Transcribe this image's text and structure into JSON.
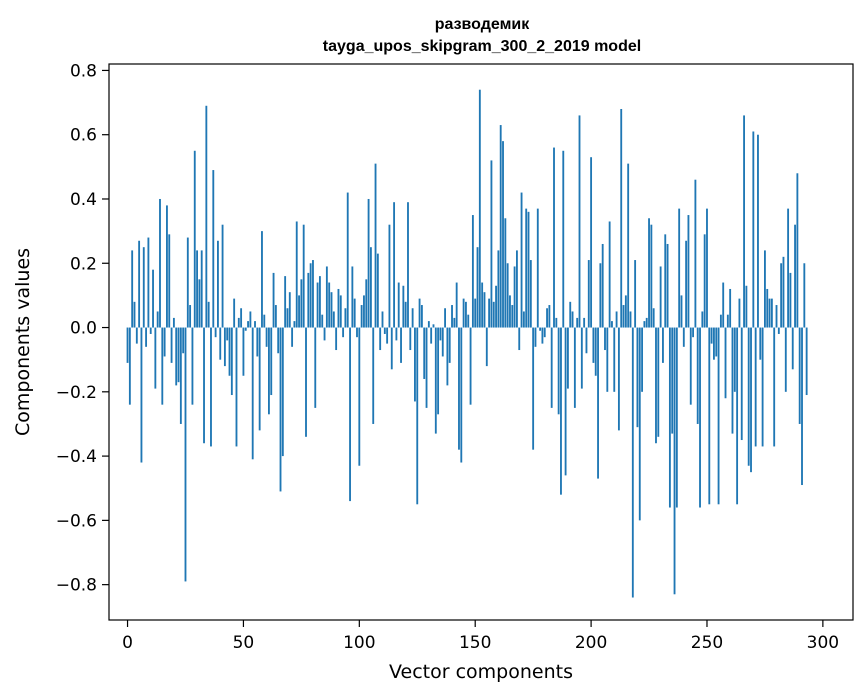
{
  "chart_data": {
    "type": "bar",
    "title": "разводемик",
    "subtitle": "tayga_upos_skipgram_300_2_2019 model",
    "xlabel": "Vector components",
    "ylabel": "Components values",
    "xlim": [
      -8,
      313
    ],
    "ylim": [
      -0.91,
      0.82
    ],
    "xticks": [
      0,
      50,
      100,
      150,
      200,
      250,
      300
    ],
    "xtick_labels": [
      "0",
      "50",
      "100",
      "150",
      "200",
      "250",
      "300"
    ],
    "yticks": [
      -0.8,
      -0.6,
      -0.4,
      -0.2,
      0.0,
      0.2,
      0.4,
      0.6,
      0.8
    ],
    "ytick_labels": [
      "−0.8",
      "−0.6",
      "−0.4",
      "−0.2",
      "0.0",
      "0.2",
      "0.4",
      "0.6",
      "0.8"
    ],
    "grid": false,
    "bar_color": "#1f77b4",
    "values": [
      -0.11,
      -0.24,
      0.24,
      0.08,
      -0.05,
      0.27,
      -0.42,
      0.25,
      -0.06,
      0.28,
      -0.02,
      0.18,
      -0.19,
      0.05,
      0.4,
      -0.24,
      -0.09,
      0.38,
      0.29,
      -0.11,
      0.03,
      -0.18,
      -0.17,
      -0.3,
      -0.08,
      -0.79,
      0.28,
      0.07,
      -0.24,
      0.55,
      0.24,
      0.15,
      0.24,
      -0.36,
      0.69,
      0.08,
      -0.37,
      0.49,
      -0.03,
      0.27,
      -0.1,
      0.32,
      -0.12,
      -0.04,
      -0.15,
      -0.21,
      0.09,
      -0.37,
      0.03,
      0.06,
      -0.15,
      -0.01,
      0.02,
      0.05,
      -0.41,
      0.02,
      -0.09,
      -0.32,
      0.3,
      0.04,
      -0.06,
      -0.27,
      -0.21,
      0.17,
      0.07,
      -0.08,
      -0.51,
      -0.4,
      0.16,
      0.06,
      0.11,
      -0.06,
      0.02,
      0.33,
      0.1,
      0.15,
      0.32,
      -0.34,
      0.17,
      0.2,
      0.21,
      -0.25,
      0.14,
      0.16,
      0.04,
      -0.04,
      0.19,
      0.14,
      0.11,
      0.05,
      -0.07,
      0.12,
      0.1,
      -0.03,
      0.06,
      0.42,
      -0.54,
      0.19,
      0.09,
      -0.03,
      -0.43,
      0.07,
      0.1,
      0.15,
      0.4,
      0.25,
      -0.3,
      0.51,
      0.23,
      -0.07,
      0.05,
      -0.02,
      -0.05,
      0.32,
      -0.13,
      0.39,
      -0.04,
      0.14,
      -0.11,
      0.13,
      0.08,
      0.39,
      -0.07,
      0.06,
      -0.23,
      -0.55,
      0.09,
      0.07,
      -0.16,
      -0.25,
      0.02,
      -0.05,
      0.01,
      -0.33,
      -0.27,
      -0.04,
      -0.09,
      0.06,
      -0.18,
      -0.11,
      0.07,
      0.03,
      0.14,
      -0.38,
      -0.42,
      0.09,
      0.08,
      0.04,
      -0.24,
      0.35,
      0.09,
      0.25,
      0.74,
      0.14,
      0.11,
      -0.12,
      0.09,
      0.52,
      0.08,
      0.13,
      0.24,
      0.63,
      0.58,
      0.34,
      0.2,
      0.1,
      0.07,
      0.19,
      0.24,
      -0.07,
      0.42,
      0.05,
      0.37,
      0.36,
      0.21,
      -0.38,
      -0.06,
      0.37,
      -0.01,
      -0.05,
      -0.03,
      0.06,
      0.07,
      -0.25,
      0.56,
      0.03,
      -0.27,
      -0.52,
      0.55,
      -0.46,
      -0.19,
      0.08,
      0.05,
      -0.25,
      0.03,
      0.66,
      -0.19,
      0.03,
      -0.08,
      0.21,
      0.53,
      -0.11,
      -0.15,
      -0.47,
      0.2,
      0.26,
      -0.07,
      -0.2,
      0.33,
      0.02,
      -0.2,
      0.05,
      -0.32,
      0.68,
      0.07,
      0.1,
      0.51,
      0.05,
      -0.84,
      0.21,
      -0.31,
      -0.6,
      -0.2,
      0.02,
      0.03,
      0.34,
      0.32,
      0.06,
      -0.36,
      -0.34,
      0.19,
      -0.11,
      0.29,
      0.26,
      -0.56,
      -0.33,
      -0.83,
      -0.56,
      0.37,
      0.1,
      -0.06,
      0.27,
      0.35,
      -0.24,
      -0.03,
      0.46,
      -0.3,
      -0.56,
      0.05,
      0.29,
      0.37,
      -0.55,
      -0.05,
      -0.1,
      -0.09,
      -0.55,
      0.04,
      0.14,
      -0.22,
      0.04,
      0.12,
      -0.33,
      -0.2,
      -0.55,
      0.09,
      -0.35,
      0.66,
      0.13,
      -0.43,
      -0.45,
      0.61,
      -0.37,
      0.6,
      -0.1,
      -0.37,
      0.24,
      0.12,
      0.09,
      0.09,
      -0.37,
      0.07,
      -0.02,
      0.2,
      0.22,
      -0.2,
      0.37,
      0.17,
      -0.13,
      0.32,
      0.48,
      -0.3,
      -0.49,
      0.2,
      -0.21
    ]
  }
}
